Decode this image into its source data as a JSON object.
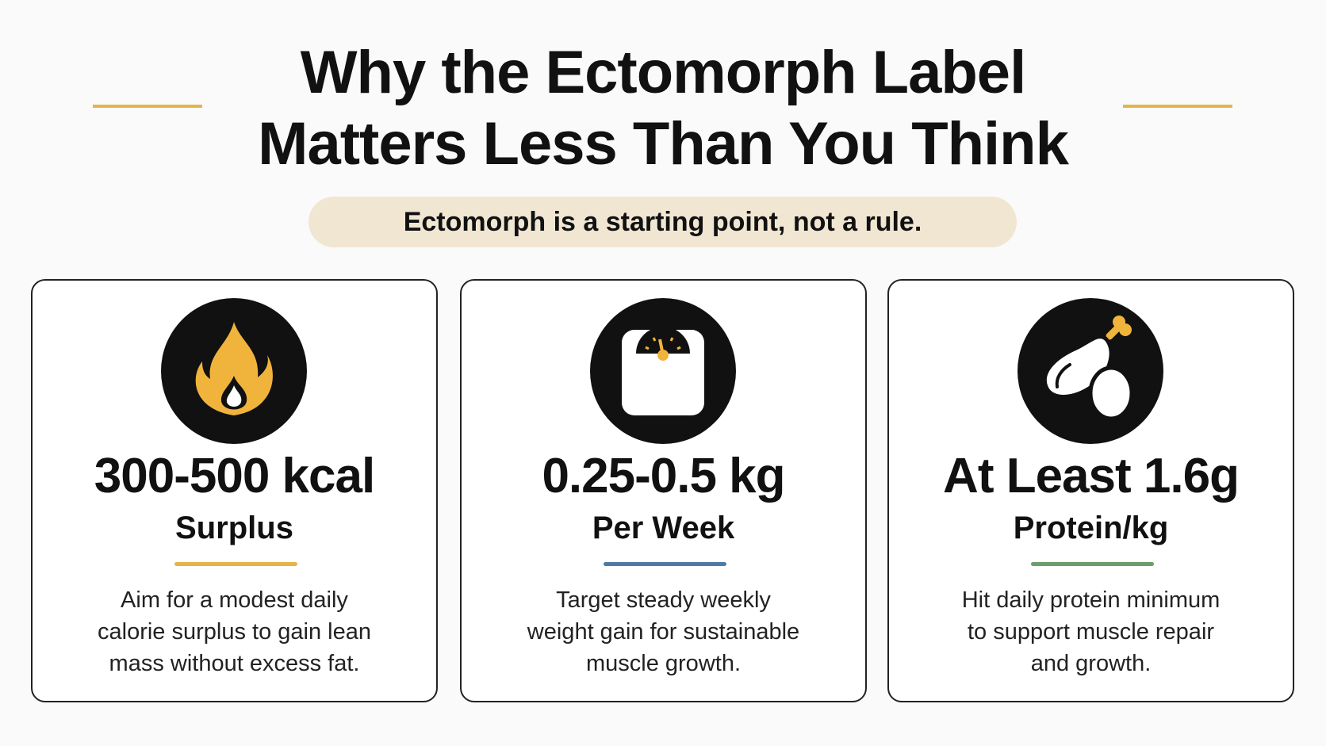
{
  "header": {
    "title": [
      "Why the Ectomorph Label",
      "Matters Less Than You Think"
    ],
    "tagline": "Ectomorph is a starting point, not a rule."
  },
  "cards": [
    {
      "stat": "300-500 kcal",
      "unit": "Surplus",
      "description": [
        "Aim for a modest daily",
        "calorie surplus to gain lean",
        "mass without excess fat."
      ]
    },
    {
      "stat": "0.25-0.5 kg",
      "unit": "Per Week",
      "description": [
        "Target steady weekly",
        "weight gain for sustainable",
        "muscle growth."
      ]
    },
    {
      "stat": "At Least 1.6g",
      "unit": "Protein/kg",
      "description": [
        "Hit daily protein minimum",
        "to support muscle repair",
        "and growth."
      ]
    }
  ]
}
